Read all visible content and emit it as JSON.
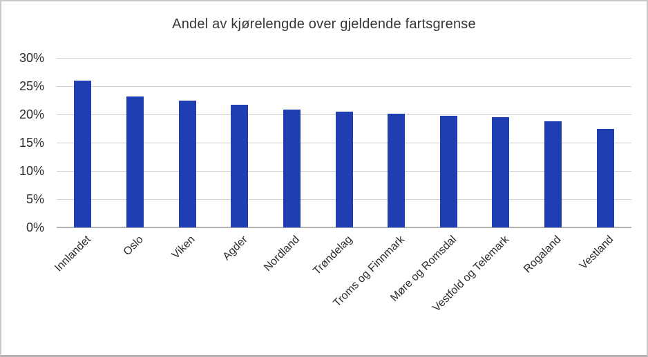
{
  "chart_data": {
    "type": "bar",
    "title": "Andel av kjørelengde over gjeldende fartsgrense",
    "categories": [
      "Innlandet",
      "Oslo",
      "Viken",
      "Agder",
      "Nordland",
      "Trøndelag",
      "Troms og Finnmark",
      "Møre og Romsdal",
      "Vestfold og Telemark",
      "Rogaland",
      "Vestland"
    ],
    "values": [
      26.0,
      23.2,
      22.4,
      21.7,
      20.8,
      20.5,
      20.1,
      19.8,
      19.5,
      18.8,
      17.5
    ],
    "value_unit": "%",
    "xlabel": "",
    "ylabel": "",
    "ylim": [
      0,
      30
    ],
    "ytick_step": 5,
    "ytick_labels": [
      "0%",
      "5%",
      "10%",
      "15%",
      "20%",
      "25%",
      "30%"
    ],
    "grid": "horizontal",
    "legend": "none",
    "x_label_rotation_deg": -45,
    "colors": {
      "bar": "#1e3eb2",
      "gridline": "#d2cfcf",
      "axis_line": "#b3b0b0",
      "title_text": "#3a3535",
      "tick_text": "#2e2929",
      "background": "#ffffff",
      "border": "#cac7c7"
    }
  }
}
